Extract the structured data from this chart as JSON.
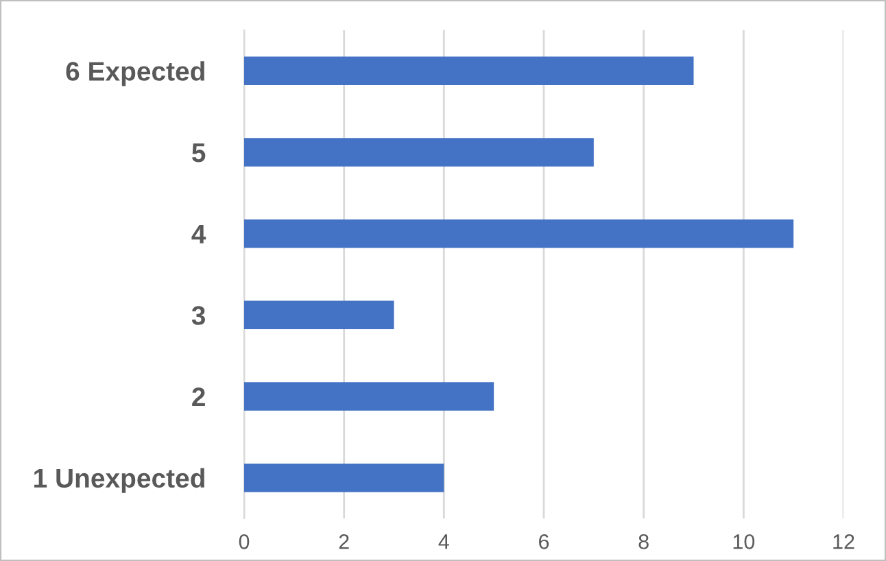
{
  "chart_data": {
    "type": "bar",
    "orientation": "horizontal",
    "categories": [
      "6 Expected",
      "5",
      "4",
      "3",
      "2",
      "1 Unexpected"
    ],
    "values": [
      9,
      7,
      11,
      3,
      5,
      4
    ],
    "color": "#4472c4",
    "xlim": [
      0,
      12
    ],
    "xticks": [
      0,
      2,
      4,
      6,
      8,
      10,
      12
    ],
    "grid": "x",
    "legend": false
  }
}
